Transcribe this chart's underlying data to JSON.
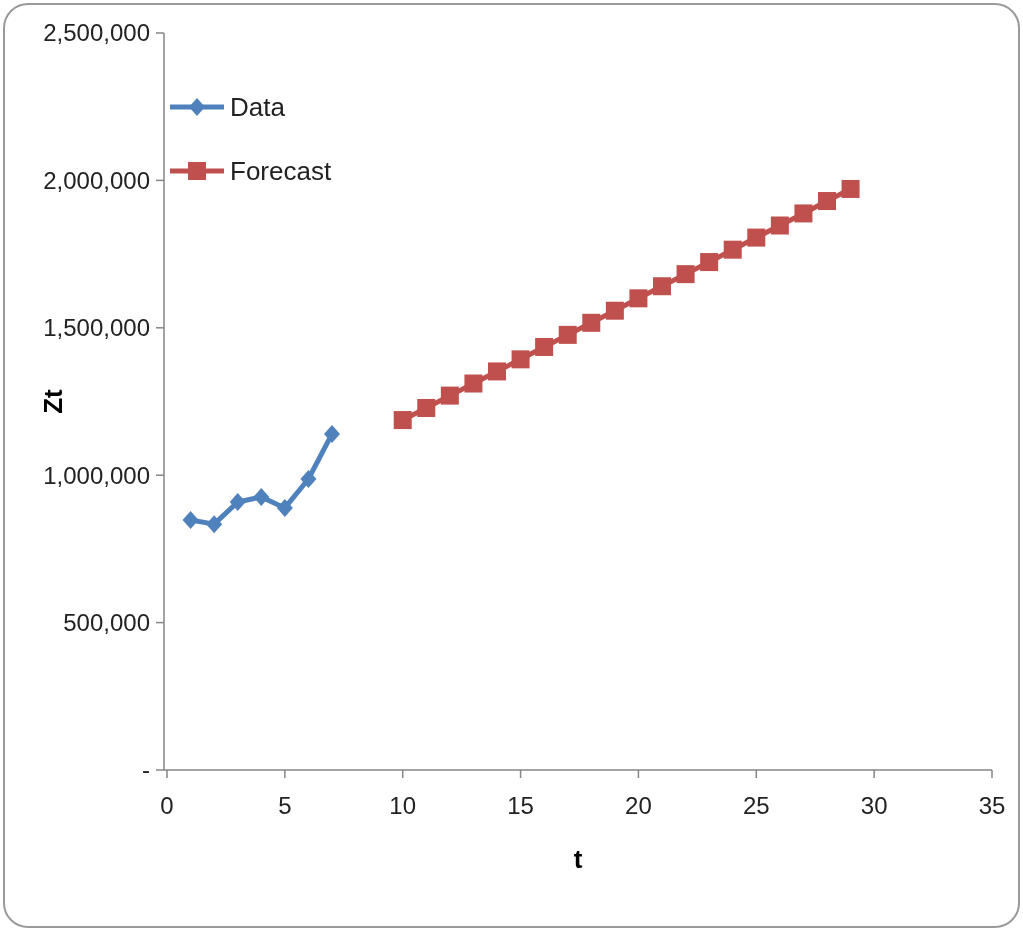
{
  "chart_data": {
    "type": "line",
    "xlabel": "t",
    "ylabel": "Zt",
    "xlim": [
      0,
      35
    ],
    "xticks": [
      0,
      5,
      10,
      15,
      20,
      25,
      30,
      35
    ],
    "ylim": [
      0,
      2500000
    ],
    "yticks": [
      {
        "value": 0,
        "label": "-"
      },
      {
        "value": 500000,
        "label": "500,000"
      },
      {
        "value": 1000000,
        "label": "1,000,000"
      },
      {
        "value": 1500000,
        "label": "1,500,000"
      },
      {
        "value": 2000000,
        "label": "2,000,000"
      },
      {
        "value": 2500000,
        "label": "2,500,000"
      }
    ],
    "grid": false,
    "legend": "top left",
    "line_style": "solid",
    "series": [
      {
        "name": "Data",
        "color": "#4f81bd",
        "marker": "diamond",
        "x": [
          1,
          2,
          3,
          4,
          5,
          6,
          7
        ],
        "values": [
          848000,
          834000,
          909000,
          926000,
          889000,
          987000,
          1140000
        ]
      },
      {
        "name": "Forecast",
        "color": "#c0504d",
        "marker": "square",
        "x": [
          10,
          11,
          12,
          13,
          14,
          15,
          16,
          17,
          18,
          19,
          20,
          21,
          22,
          23,
          24,
          25,
          26,
          27,
          28,
          29
        ],
        "values": [
          1187000,
          1228000,
          1270000,
          1311000,
          1352000,
          1393000,
          1435000,
          1476000,
          1517000,
          1558000,
          1600000,
          1641000,
          1682000,
          1723000,
          1765000,
          1806000,
          1847000,
          1888000,
          1930000,
          1971000
        ]
      }
    ]
  }
}
